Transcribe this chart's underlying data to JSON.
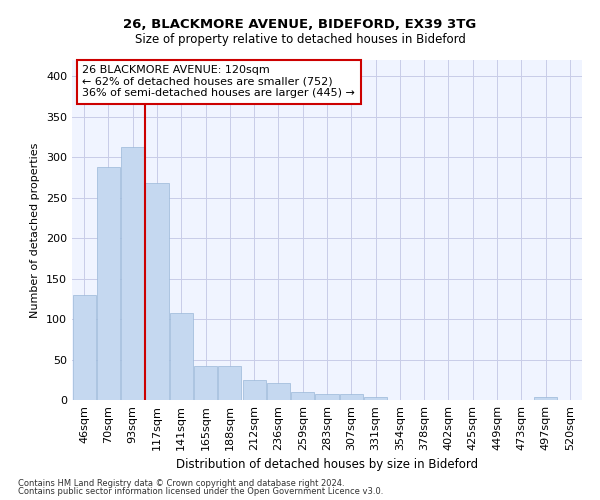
{
  "title1": "26, BLACKMORE AVENUE, BIDEFORD, EX39 3TG",
  "title2": "Size of property relative to detached houses in Bideford",
  "xlabel": "Distribution of detached houses by size in Bideford",
  "ylabel": "Number of detached properties",
  "footer1": "Contains HM Land Registry data © Crown copyright and database right 2024.",
  "footer2": "Contains public sector information licensed under the Open Government Licence v3.0.",
  "categories": [
    "46sqm",
    "70sqm",
    "93sqm",
    "117sqm",
    "141sqm",
    "165sqm",
    "188sqm",
    "212sqm",
    "236sqm",
    "259sqm",
    "283sqm",
    "307sqm",
    "331sqm",
    "354sqm",
    "378sqm",
    "402sqm",
    "425sqm",
    "449sqm",
    "473sqm",
    "497sqm",
    "520sqm"
  ],
  "values": [
    130,
    288,
    313,
    268,
    107,
    42,
    42,
    25,
    21,
    10,
    8,
    7,
    4,
    0,
    0,
    0,
    0,
    0,
    0,
    4,
    0
  ],
  "bar_color": "#c5d8f0",
  "bar_edge_color": "#9ab8d8",
  "vline_x": 2.5,
  "vline_color": "#cc0000",
  "annotation_text": "26 BLACKMORE AVENUE: 120sqm\n← 62% of detached houses are smaller (752)\n36% of semi-detached houses are larger (445) →",
  "annotation_box_color": "white",
  "annotation_box_edge": "#cc0000",
  "ylim": [
    0,
    420
  ],
  "yticks": [
    0,
    50,
    100,
    150,
    200,
    250,
    300,
    350,
    400
  ],
  "bg_color": "#f0f4ff",
  "grid_color": "#c8cce8",
  "figsize": [
    6.0,
    5.0
  ],
  "dpi": 100
}
